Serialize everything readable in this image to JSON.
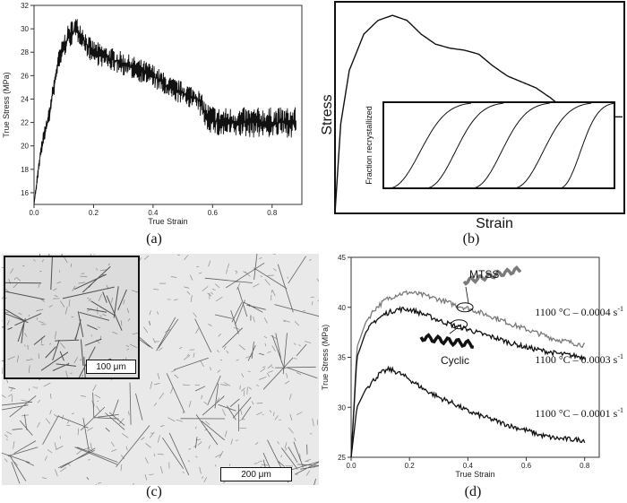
{
  "captions": {
    "a": "(a)",
    "b": "(b)",
    "c": "(c)",
    "d": "(d)"
  },
  "panel_c": {
    "inset_scale": "100 μm",
    "main_scale": "200 μm"
  },
  "chart_data": [
    {
      "id": "a",
      "type": "line",
      "xlabel": "True Strain",
      "ylabel": "True Stress (MPa)",
      "xlim": [
        0,
        0.9
      ],
      "ylim": [
        15,
        32
      ],
      "xticks": [
        "0.0",
        "0.2",
        "0.4",
        "0.6",
        "0.8"
      ],
      "yticks": [
        "16",
        "18",
        "20",
        "22",
        "24",
        "26",
        "28",
        "30",
        "32"
      ],
      "series": [
        {
          "x": [
            0.0,
            0.01,
            0.02,
            0.03,
            0.04,
            0.05,
            0.06,
            0.07,
            0.08,
            0.1,
            0.12,
            0.14,
            0.16,
            0.18,
            0.2,
            0.25,
            0.3,
            0.35,
            0.4,
            0.45,
            0.5,
            0.55,
            0.58,
            0.62,
            0.7,
            0.8,
            0.88
          ],
          "y": [
            15,
            17,
            19,
            20.5,
            21.5,
            22.5,
            24,
            25.5,
            27,
            28.5,
            29.5,
            30,
            29.5,
            28.5,
            28,
            27.5,
            27,
            26.5,
            26,
            25,
            24.5,
            24,
            22.5,
            22,
            22,
            22,
            22
          ],
          "noise": [
            0,
            0.5,
            0.5,
            0.6,
            0.6,
            0.7,
            0.8,
            0.8,
            0.9,
            1.0,
            1.1,
            1.1,
            1.0,
            1.0,
            1.0,
            1.0,
            1.0,
            1.0,
            1.0,
            1.0,
            1.0,
            1.0,
            1.2,
            1.3,
            1.3,
            1.3,
            1.3
          ]
        }
      ]
    },
    {
      "id": "b",
      "type": "line",
      "xlabel": "Strain",
      "ylabel": "Stress",
      "inset_ylabel": "Fraction recrystallized",
      "series": [
        {
          "x": [
            0,
            0.02,
            0.05,
            0.1,
            0.15,
            0.2,
            0.25,
            0.3,
            0.35,
            0.4,
            0.45,
            0.5,
            0.55,
            0.6,
            0.65,
            0.7,
            0.75,
            0.8,
            0.85,
            0.9,
            0.95,
            1.0
          ],
          "y": [
            0,
            0.45,
            0.72,
            0.9,
            0.97,
            0.995,
            0.97,
            0.9,
            0.85,
            0.83,
            0.82,
            0.8,
            0.74,
            0.69,
            0.66,
            0.63,
            0.58,
            0.52,
            0.5,
            0.49,
            0.485,
            0.485
          ]
        }
      ],
      "inset_curves": [
        {
          "start": 0.02,
          "end": 0.38
        },
        {
          "start": 0.18,
          "end": 0.52
        },
        {
          "start": 0.38,
          "end": 0.72
        },
        {
          "start": 0.56,
          "end": 0.9
        },
        {
          "start": 0.76,
          "end": 1.0
        }
      ]
    },
    {
      "id": "d",
      "type": "line",
      "xlabel": "True Strain",
      "ylabel": "True Stress (MPa)",
      "xlim": [
        0,
        0.85
      ],
      "ylim": [
        25,
        45
      ],
      "xticks": [
        "0.0",
        "0.2",
        "0.4",
        "0.6",
        "0.8"
      ],
      "yticks": [
        "25",
        "30",
        "35",
        "40",
        "45"
      ],
      "series": [
        {
          "name": "1100 °C – 0.0004 s",
          "superscript": "-1",
          "color": "#7a7a7a",
          "x": [
            0.0,
            0.02,
            0.05,
            0.08,
            0.12,
            0.16,
            0.2,
            0.25,
            0.3,
            0.35,
            0.4,
            0.45,
            0.5,
            0.55,
            0.6,
            0.65,
            0.7,
            0.75,
            0.8
          ],
          "y": [
            25,
            36,
            38.5,
            39.8,
            40.8,
            41.3,
            41.5,
            41.2,
            40.8,
            40.3,
            39.9,
            39.4,
            38.9,
            38.3,
            37.8,
            37.3,
            36.8,
            36.5,
            36.2
          ]
        },
        {
          "name": "1100 °C – 0.0003 s",
          "superscript": "-1",
          "color": "#111111",
          "x": [
            0.0,
            0.02,
            0.05,
            0.08,
            0.12,
            0.16,
            0.2,
            0.25,
            0.3,
            0.35,
            0.4,
            0.45,
            0.5,
            0.55,
            0.6,
            0.65,
            0.7,
            0.75,
            0.8
          ],
          "y": [
            25,
            35,
            37.5,
            38.6,
            39.4,
            39.8,
            39.8,
            39.3,
            38.7,
            38.2,
            37.8,
            37.3,
            36.9,
            36.4,
            36.0,
            35.7,
            35.4,
            35.2,
            35.0
          ]
        },
        {
          "name": "1100 °C – 0.0001 s",
          "superscript": "-1",
          "color": "#111111",
          "x": [
            0.0,
            0.02,
            0.05,
            0.08,
            0.1,
            0.13,
            0.16,
            0.2,
            0.25,
            0.3,
            0.35,
            0.4,
            0.45,
            0.5,
            0.55,
            0.6,
            0.65,
            0.7,
            0.75,
            0.8
          ],
          "y": [
            25,
            30,
            31.8,
            32.8,
            33.4,
            33.8,
            33.5,
            32.8,
            31.8,
            31.0,
            30.4,
            29.6,
            29.1,
            28.6,
            28.1,
            27.7,
            27.2,
            26.9,
            26.8,
            26.7
          ]
        }
      ],
      "annotations": [
        {
          "text": "MTSS",
          "color": "#7a7a7a"
        },
        {
          "text": "Cyclic",
          "color": "#111111"
        }
      ]
    }
  ]
}
